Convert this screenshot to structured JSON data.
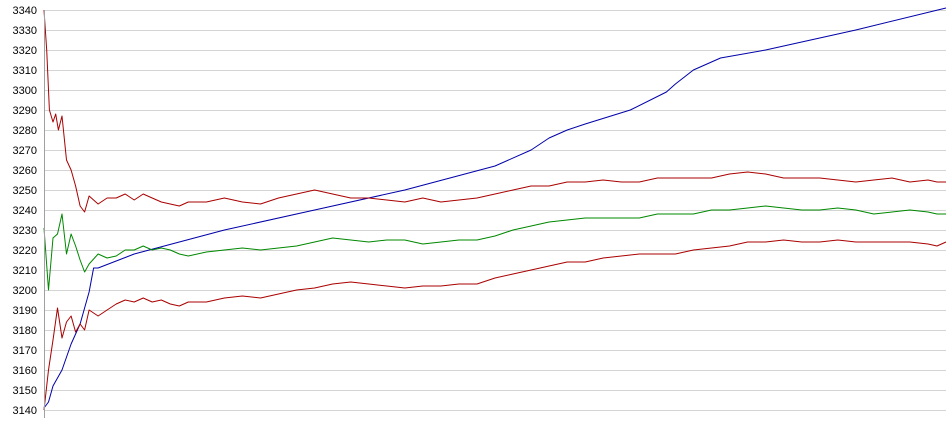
{
  "chart_data": {
    "type": "line",
    "title": "",
    "xlabel": "",
    "ylabel": "",
    "grid": true,
    "legend": "none",
    "ylim": [
      3140,
      3340
    ],
    "xlim": [
      0,
      100
    ],
    "yticks": [
      3140,
      3150,
      3160,
      3170,
      3180,
      3190,
      3200,
      3210,
      3220,
      3230,
      3240,
      3250,
      3260,
      3270,
      3280,
      3290,
      3300,
      3310,
      3320,
      3330,
      3340
    ],
    "series": [
      {
        "color": "#0000aa",
        "x": [
          0,
          0.5,
          1,
          2,
          3,
          4,
          5,
          5.5,
          6,
          10,
          20,
          30,
          40,
          50,
          54,
          56,
          58,
          60,
          65,
          69,
          70,
          72,
          75,
          80,
          90,
          100
        ],
        "y": [
          3141,
          3144,
          3152,
          3160,
          3173,
          3183,
          3199,
          3211,
          3211,
          3218,
          3230,
          3240,
          3250,
          3262,
          3270,
          3276,
          3280,
          3283,
          3290,
          3299,
          3303,
          3310,
          3316,
          3320,
          3330,
          3341
        ]
      },
      {
        "color": "#aa0000",
        "x": [
          0,
          0.3,
          0.6,
          1,
          1.3,
          1.6,
          2,
          2.5,
          3,
          3.5,
          4,
          4.5,
          5,
          6,
          7,
          8,
          9,
          10,
          11,
          12,
          13,
          14,
          15,
          16,
          18,
          20,
          22,
          24,
          26,
          28,
          30,
          32,
          34,
          36,
          38,
          40,
          42,
          44,
          46,
          48,
          50,
          52,
          54,
          56,
          58,
          60,
          62,
          64,
          66,
          68,
          70,
          72,
          74,
          76,
          78,
          80,
          82,
          84,
          86,
          88,
          90,
          92,
          94,
          96,
          98,
          99,
          100
        ],
        "y": [
          3340,
          3320,
          3290,
          3284,
          3288,
          3280,
          3287,
          3265,
          3260,
          3252,
          3242,
          3239,
          3247,
          3243,
          3246,
          3246,
          3248,
          3245,
          3248,
          3246,
          3244,
          3243,
          3242,
          3244,
          3244,
          3246,
          3244,
          3243,
          3246,
          3248,
          3250,
          3248,
          3246,
          3246,
          3245,
          3244,
          3246,
          3244,
          3245,
          3246,
          3248,
          3250,
          3252,
          3252,
          3254,
          3254,
          3255,
          3254,
          3254,
          3256,
          3256,
          3256,
          3256,
          3258,
          3259,
          3258,
          3256,
          3256,
          3256,
          3255,
          3254,
          3255,
          3256,
          3254,
          3255,
          3254,
          3254
        ]
      },
      {
        "color": "#008800",
        "x": [
          0,
          0.5,
          1,
          1.5,
          2,
          2.5,
          3,
          3.5,
          4,
          4.5,
          5,
          6,
          7,
          8,
          9,
          10,
          11,
          12,
          13,
          14,
          15,
          16,
          18,
          20,
          22,
          24,
          26,
          28,
          30,
          32,
          34,
          36,
          38,
          40,
          42,
          44,
          46,
          48,
          50,
          52,
          54,
          56,
          58,
          60,
          62,
          64,
          66,
          68,
          70,
          72,
          74,
          76,
          78,
          80,
          82,
          84,
          86,
          88,
          90,
          92,
          94,
          96,
          98,
          99,
          100
        ],
        "y": [
          3231,
          3200,
          3226,
          3228,
          3238,
          3218,
          3228,
          3222,
          3215,
          3209,
          3213,
          3218,
          3216,
          3217,
          3220,
          3220,
          3222,
          3220,
          3221,
          3220,
          3218,
          3217,
          3219,
          3220,
          3221,
          3220,
          3221,
          3222,
          3224,
          3226,
          3225,
          3224,
          3225,
          3225,
          3223,
          3224,
          3225,
          3225,
          3227,
          3230,
          3232,
          3234,
          3235,
          3236,
          3236,
          3236,
          3236,
          3238,
          3238,
          3238,
          3240,
          3240,
          3241,
          3242,
          3241,
          3240,
          3240,
          3241,
          3240,
          3238,
          3239,
          3240,
          3239,
          3238,
          3238
        ]
      },
      {
        "color": "#aa0000",
        "x": [
          0,
          0.5,
          1,
          1.5,
          2,
          2.5,
          3,
          3.5,
          4,
          4.5,
          5,
          6,
          7,
          8,
          9,
          10,
          11,
          12,
          13,
          14,
          15,
          16,
          18,
          20,
          22,
          24,
          26,
          28,
          30,
          32,
          34,
          36,
          38,
          40,
          42,
          44,
          46,
          48,
          50,
          52,
          54,
          56,
          58,
          60,
          62,
          64,
          66,
          68,
          70,
          72,
          74,
          76,
          78,
          80,
          82,
          84,
          86,
          88,
          90,
          92,
          94,
          96,
          98,
          99,
          100
        ],
        "y": [
          3140,
          3160,
          3175,
          3191,
          3176,
          3184,
          3187,
          3179,
          3183,
          3180,
          3190,
          3187,
          3190,
          3193,
          3195,
          3194,
          3196,
          3194,
          3195,
          3193,
          3192,
          3194,
          3194,
          3196,
          3197,
          3196,
          3198,
          3200,
          3201,
          3203,
          3204,
          3203,
          3202,
          3201,
          3202,
          3202,
          3203,
          3203,
          3206,
          3208,
          3210,
          3212,
          3214,
          3214,
          3216,
          3217,
          3218,
          3218,
          3218,
          3220,
          3221,
          3222,
          3224,
          3224,
          3225,
          3224,
          3224,
          3225,
          3224,
          3224,
          3224,
          3224,
          3223,
          3222,
          3224
        ]
      }
    ]
  }
}
